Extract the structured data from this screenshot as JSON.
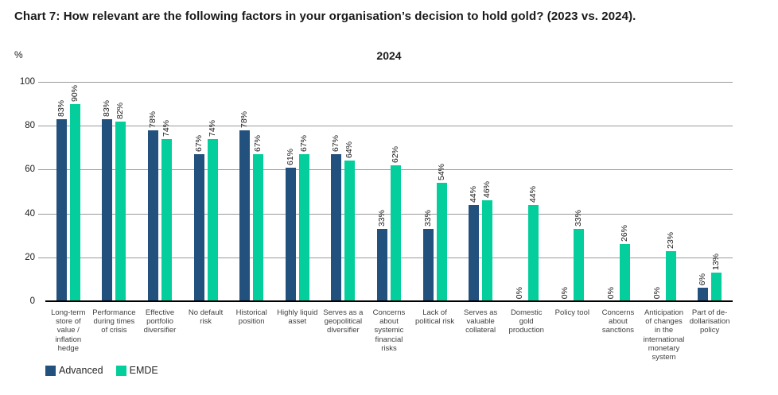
{
  "title": "Chart 7: How relevant are the following factors in your organisation’s decision to hold gold? (2023 vs. 2024).",
  "subtitle": "2024",
  "y_axis_unit": "%",
  "colors": {
    "advanced": "#23517E",
    "emde": "#04CF9C",
    "gridline": "#9a9a9a",
    "axis": "#000000"
  },
  "legend": [
    {
      "label": "Advanced",
      "color": "#23517E"
    },
    {
      "label": "EMDE",
      "color": "#04CF9C"
    }
  ],
  "chart_data": {
    "type": "bar",
    "title": "2024",
    "ylabel": "%",
    "ylim": [
      0,
      100
    ],
    "yticks": [
      0,
      20,
      40,
      60,
      80,
      100
    ],
    "grid": true,
    "legend_position": "bottom-left",
    "value_label_suffix": "%",
    "categories": [
      "Long-term store of value / inflation hedge",
      "Performance during times of crisis",
      "Effective portfolio diversifier",
      "No default risk",
      "Historical position",
      "Highly liquid asset",
      "Serves as a geopolitical diversifier",
      "Concerns about systemic financial risks",
      "Lack of political risk",
      "Serves as valuable collateral",
      "Domestic gold production",
      "Policy tool",
      "Concerns about sanctions",
      "Anticipation of changes in the international monetary system",
      "Part of de-dollarisation policy"
    ],
    "series": [
      {
        "name": "Advanced",
        "color": "#23517E",
        "values": [
          83,
          83,
          78,
          67,
          78,
          61,
          67,
          33,
          33,
          44,
          0,
          0,
          0,
          0,
          6
        ]
      },
      {
        "name": "EMDE",
        "color": "#04CF9C",
        "values": [
          90,
          82,
          74,
          74,
          67,
          67,
          64,
          62,
          54,
          46,
          44,
          33,
          26,
          23,
          13
        ]
      }
    ]
  }
}
